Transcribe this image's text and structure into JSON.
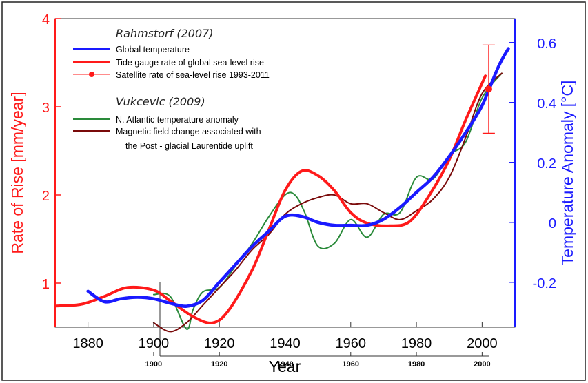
{
  "chart_data": {
    "type": "line",
    "x_axis": {
      "label": "Year",
      "range": [
        1870,
        2010
      ],
      "ticks": [
        "1880",
        "1900",
        "1920",
        "1940",
        "1960",
        "1980",
        "2000"
      ],
      "secondary_ticks": [
        "1900",
        "1920",
        "1940",
        "1960",
        "1980",
        "2000"
      ]
    },
    "y_left": {
      "label": "Rate of Rise [mm/year]",
      "range": [
        0.5,
        4
      ],
      "ticks": [
        "1",
        "2",
        "3",
        "4"
      ],
      "color": "#ff1a1a"
    },
    "y_right": {
      "label": "Temperature Anomaly [°C]",
      "range": [
        -0.35,
        0.68
      ],
      "ticks": [
        "-0.2",
        "0",
        "0.2",
        "0.4",
        "0.6"
      ],
      "color": "#1a1aff"
    },
    "legend": {
      "group1_title": "Rahmstorf (2007)",
      "group2_title": "Vukcevic (2009)",
      "items": [
        {
          "label": "Global temperature",
          "color": "#1a1aff"
        },
        {
          "label": "Tide gauge rate of global sea-level rise",
          "color": "#ff1a1a"
        },
        {
          "label": "Satellite rate of sea-level rise 1993-2011",
          "color": "#ff1a1a"
        },
        {
          "label": "N. Atlantic temperature anomaly",
          "color": "#2a8a3a"
        },
        {
          "label": "Magnetic field change associated with",
          "color": "#7a0a0a"
        },
        {
          "label": "the Post - glacial Laurentide uplift",
          "color": "#7a0a0a"
        }
      ]
    },
    "series": [
      {
        "name": "Tide gauge rate of global sea-level rise",
        "axis": "left",
        "color": "#ff1a1a",
        "points": [
          [
            1870,
            0.74
          ],
          [
            1878,
            0.76
          ],
          [
            1885,
            0.85
          ],
          [
            1892,
            0.95
          ],
          [
            1900,
            0.92
          ],
          [
            1905,
            0.8
          ],
          [
            1912,
            0.62
          ],
          [
            1918,
            0.55
          ],
          [
            1923,
            0.7
          ],
          [
            1930,
            1.15
          ],
          [
            1935,
            1.6
          ],
          [
            1940,
            2.05
          ],
          [
            1945,
            2.27
          ],
          [
            1950,
            2.22
          ],
          [
            1955,
            2.05
          ],
          [
            1960,
            1.8
          ],
          [
            1965,
            1.68
          ],
          [
            1972,
            1.65
          ],
          [
            1978,
            1.7
          ],
          [
            1984,
            2.0
          ],
          [
            1990,
            2.4
          ],
          [
            1995,
            2.85
          ],
          [
            2001,
            3.35
          ]
        ]
      },
      {
        "name": "Global temperature",
        "axis": "right",
        "color": "#1a1aff",
        "points": [
          [
            1880,
            -0.23
          ],
          [
            1885,
            -0.265
          ],
          [
            1890,
            -0.255
          ],
          [
            1895,
            -0.25
          ],
          [
            1900,
            -0.255
          ],
          [
            1905,
            -0.27
          ],
          [
            1910,
            -0.28
          ],
          [
            1915,
            -0.26
          ],
          [
            1920,
            -0.2
          ],
          [
            1925,
            -0.14
          ],
          [
            1930,
            -0.08
          ],
          [
            1935,
            -0.03
          ],
          [
            1940,
            0.02
          ],
          [
            1945,
            0.02
          ],
          [
            1950,
            0.0
          ],
          [
            1955,
            -0.01
          ],
          [
            1960,
            -0.01
          ],
          [
            1965,
            -0.01
          ],
          [
            1970,
            0.01
          ],
          [
            1975,
            0.05
          ],
          [
            1980,
            0.1
          ],
          [
            1985,
            0.15
          ],
          [
            1990,
            0.22
          ],
          [
            1995,
            0.3
          ],
          [
            2000,
            0.39
          ],
          [
            2005,
            0.52
          ],
          [
            2008,
            0.58
          ]
        ]
      },
      {
        "name": "N. Atlantic temperature anomaly",
        "axis": "left",
        "color": "#2a8a3a",
        "points": [
          [
            1900,
            0.87
          ],
          [
            1905,
            0.85
          ],
          [
            1910,
            0.48
          ],
          [
            1912,
            0.7
          ],
          [
            1915,
            0.9
          ],
          [
            1920,
            0.95
          ],
          [
            1925,
            1.2
          ],
          [
            1930,
            1.45
          ],
          [
            1935,
            1.75
          ],
          [
            1940,
            2.0
          ],
          [
            1943,
            2.0
          ],
          [
            1946,
            1.8
          ],
          [
            1950,
            1.42
          ],
          [
            1955,
            1.45
          ],
          [
            1960,
            1.72
          ],
          [
            1965,
            1.52
          ],
          [
            1970,
            1.78
          ],
          [
            1975,
            1.8
          ],
          [
            1980,
            2.2
          ],
          [
            1985,
            2.18
          ],
          [
            1990,
            2.45
          ],
          [
            1995,
            2.6
          ],
          [
            2000,
            3.1
          ],
          [
            2006,
            3.38
          ]
        ]
      },
      {
        "name": "Magnetic field change associated with the Post - glacial Laurentide uplift",
        "axis": "left",
        "color": "#7a0a0a",
        "points": [
          [
            1900,
            0.55
          ],
          [
            1905,
            0.45
          ],
          [
            1910,
            0.55
          ],
          [
            1915,
            0.75
          ],
          [
            1920,
            0.95
          ],
          [
            1925,
            1.15
          ],
          [
            1930,
            1.38
          ],
          [
            1935,
            1.55
          ],
          [
            1940,
            1.78
          ],
          [
            1945,
            1.9
          ],
          [
            1950,
            1.97
          ],
          [
            1955,
            2.0
          ],
          [
            1960,
            1.9
          ],
          [
            1965,
            1.9
          ],
          [
            1970,
            1.8
          ],
          [
            1975,
            1.72
          ],
          [
            1980,
            1.82
          ],
          [
            1985,
            1.95
          ],
          [
            1990,
            2.2
          ],
          [
            1995,
            2.65
          ],
          [
            2000,
            3.15
          ],
          [
            2006,
            3.38
          ]
        ]
      },
      {
        "name": "Satellite rate of sea-level rise 1993-2011",
        "axis": "left",
        "color": "#ff1a1a",
        "marker": "errorbar",
        "x": 2002,
        "y": 3.2,
        "y_low": 2.7,
        "y_high": 3.7
      }
    ]
  }
}
